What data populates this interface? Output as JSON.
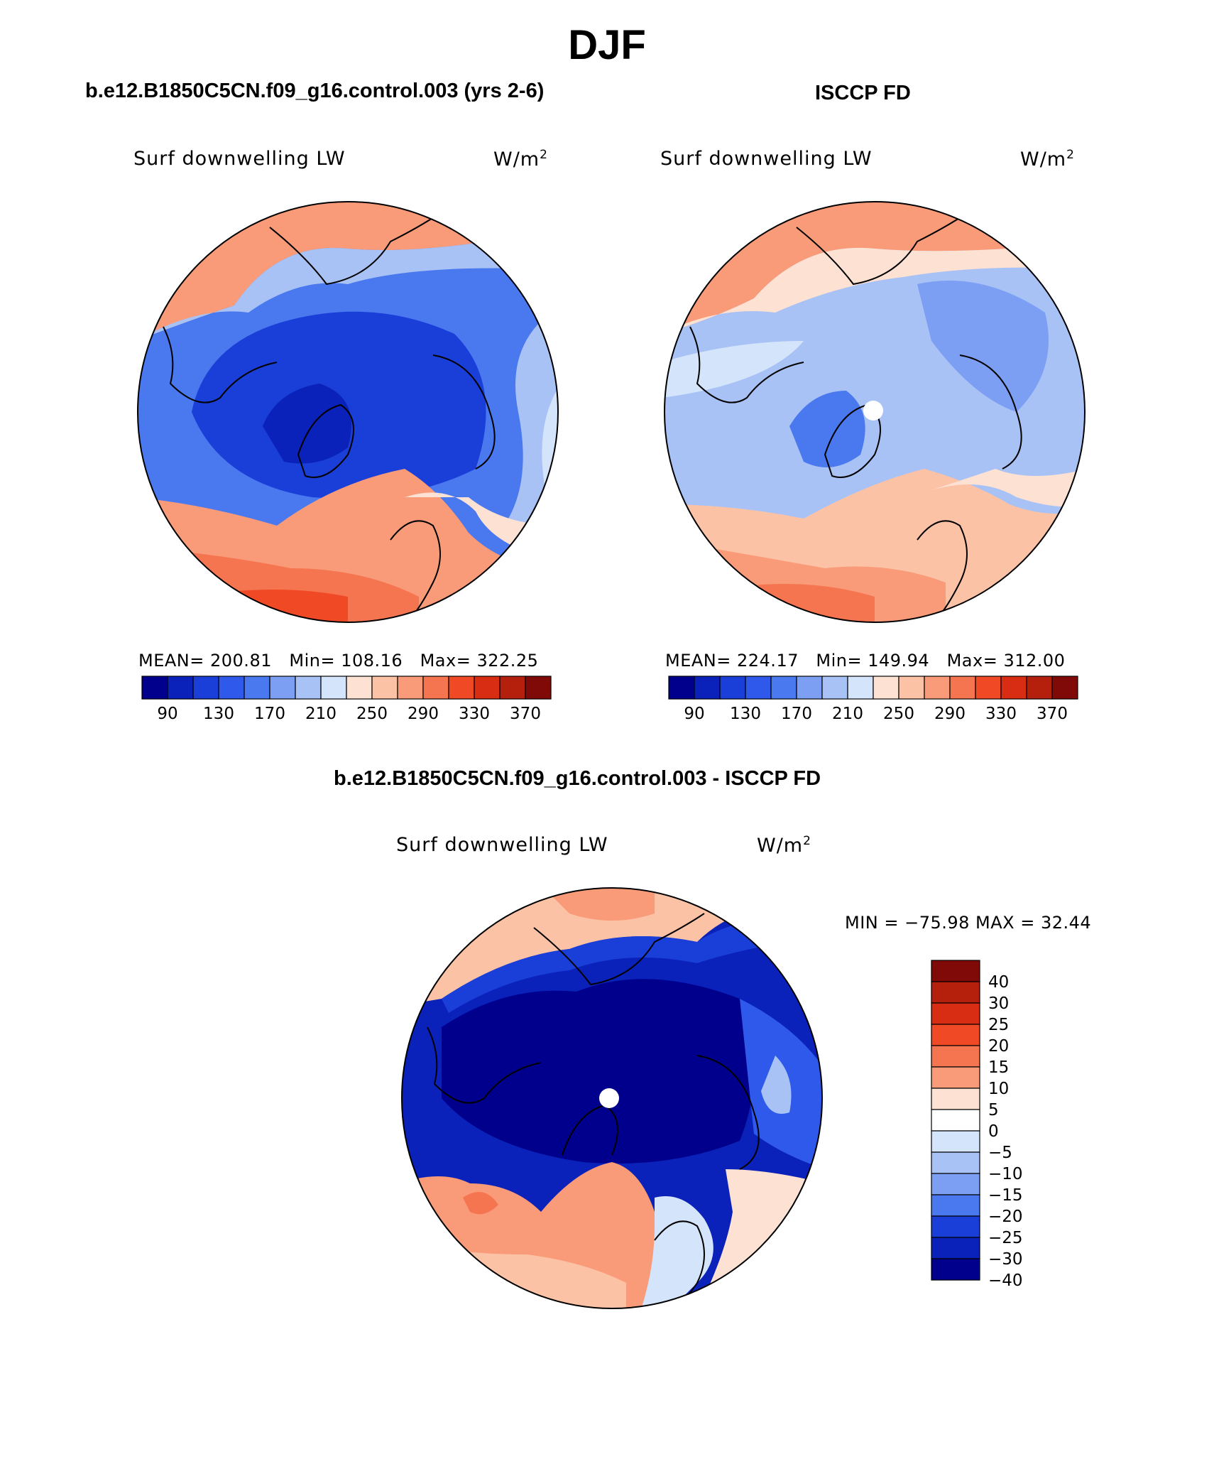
{
  "title": "DJF",
  "panels": [
    {
      "id": "model",
      "header": "b.e12.B1850C5CN.f09_g16.control.003 (yrs 2-6)",
      "variable": "Surf downwelling LW",
      "units": "W/m",
      "units_sup": "2",
      "stats": {
        "mean_label": "MEAN=",
        "mean": "200.81",
        "min_label": "Min=",
        "min": "108.16",
        "max_label": "Max=",
        "max": "322.25"
      },
      "colorbar_labels": [
        "90",
        "130",
        "170",
        "210",
        "250",
        "290",
        "330",
        "370"
      ]
    },
    {
      "id": "obs",
      "header": "ISCCP FD",
      "variable": "Surf downwelling LW",
      "units": "W/m",
      "units_sup": "2",
      "stats": {
        "mean_label": "MEAN=",
        "mean": "224.17",
        "min_label": "Min=",
        "min": "149.94",
        "max_label": "Max=",
        "max": "312.00"
      },
      "colorbar_labels": [
        "90",
        "130",
        "170",
        "210",
        "250",
        "290",
        "330",
        "370"
      ]
    },
    {
      "id": "diff",
      "header": "b.e12.B1850C5CN.f09_g16.control.003 - ISCCP FD",
      "variable": "Surf downwelling LW",
      "units": "W/m",
      "units_sup": "2",
      "minmax": "MIN = −75.98 MAX =   32.44",
      "colorbar_labels": [
        "40",
        "30",
        "25",
        "20",
        "15",
        "10",
        "5",
        "0",
        "−5",
        "−10",
        "−15",
        "−20",
        "−25",
        "−30",
        "−40"
      ]
    }
  ],
  "colors": {
    "abs_scale": [
      "#00008d",
      "#0a22b9",
      "#1a3fd8",
      "#2e59ea",
      "#4a78ee",
      "#7c9ff3",
      "#a8c2f6",
      "#d4e4fa",
      "#fde1d2",
      "#fcc2a6",
      "#f99b79",
      "#f57551",
      "#ef4a25",
      "#d82d12",
      "#b5200c",
      "#7f0a07"
    ],
    "diff_scale": [
      "#7f0a07",
      "#b5200c",
      "#d82d12",
      "#ef4a25",
      "#f57551",
      "#f99b79",
      "#fde1d2",
      "#ffffff",
      "#d4e4fa",
      "#a8c2f6",
      "#7c9ff3",
      "#4a78ee",
      "#1a3fd8",
      "#0a22b9",
      "#00008d"
    ],
    "coast": "#000000"
  }
}
